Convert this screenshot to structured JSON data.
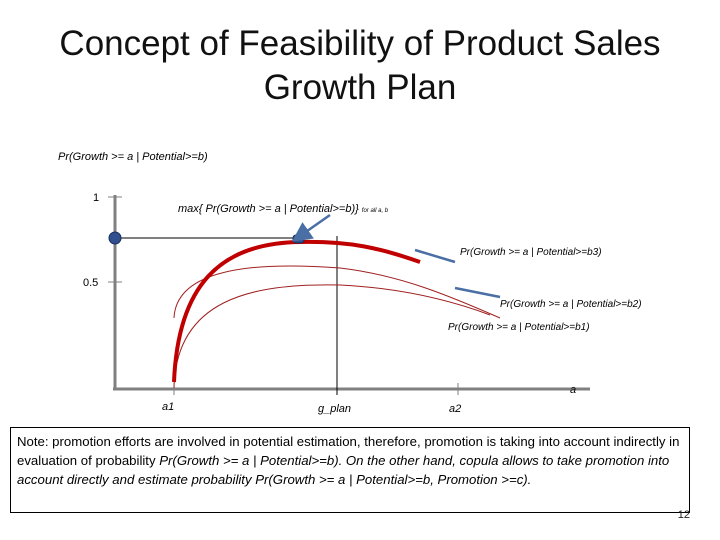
{
  "slide": {
    "title_line1": "Concept of Feasibility of Product Sales",
    "title_line2": "Growth Plan",
    "page_number": "12"
  },
  "diagram": {
    "y_axis_label": "Pr(Growth >= a | Potential>=b)",
    "y_tick_1": "1",
    "y_tick_half": "0.5",
    "max_label_main": "max{ Pr(Growth >= a | Potential>=b)}",
    "max_label_sub": "for all a, b",
    "curve_label_b3": "Pr(Growth >= a | Potential>=b3)",
    "curve_label_b2": "Pr(Growth >= a | Potential>=b2)",
    "curve_label_b1": "Pr(Growth >= a | Potential>=b1)",
    "x_axis_label": "a",
    "x_tick_a1": "a1",
    "x_tick_gplan": "g_plan",
    "x_tick_a2": "a2",
    "colors": {
      "accent_curve": "#c00000",
      "thin_curve": "#a02020",
      "marker": "#2f4f8f",
      "pointer": "#4a6fa5"
    }
  },
  "note": {
    "part1": "Note: promotion efforts are involved in potential estimation, therefore, promotion is taking into account indirectly in evaluation of probability ",
    "formula1": "Pr(Growth >= a | Potential>=b). On  the other hand, copula  allows to take promotion into account directly and estimate probability Pr(Growth >= a | Potential>=b, Promotion >=c)."
  }
}
